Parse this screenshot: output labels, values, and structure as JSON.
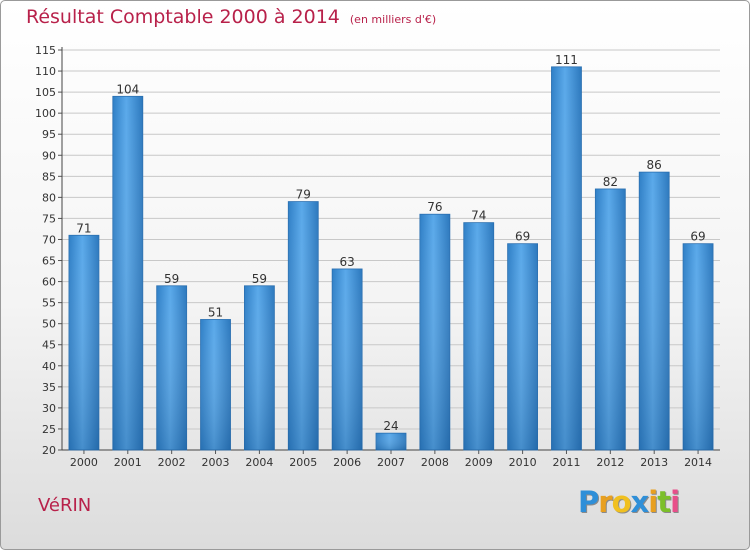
{
  "chart_data": {
    "type": "bar",
    "title": "Résultat Comptable 2000 à 2014",
    "unit_note": "(en milliers d'€)",
    "xlabel": "",
    "ylabel": "",
    "ylim": [
      20,
      115
    ],
    "ytick_step": 5,
    "grid": true,
    "categories": [
      "2000",
      "2001",
      "2002",
      "2003",
      "2004",
      "2005",
      "2006",
      "2007",
      "2008",
      "2009",
      "2010",
      "2011",
      "2012",
      "2013",
      "2014"
    ],
    "values": [
      71,
      104,
      59,
      51,
      59,
      79,
      63,
      24,
      76,
      74,
      69,
      111,
      82,
      86,
      69
    ],
    "bar_color": "#3f8fd6",
    "title_color": "#b8214a"
  },
  "location": "VéRIN",
  "logo": {
    "letters": [
      "P",
      "r",
      "o",
      "x",
      "i",
      "t",
      "i"
    ],
    "colors": [
      "#2f8fd8",
      "#e8a020",
      "#f0c020",
      "#2f8fd8",
      "#e8a020",
      "#7cbf2a",
      "#e84f8a"
    ]
  }
}
